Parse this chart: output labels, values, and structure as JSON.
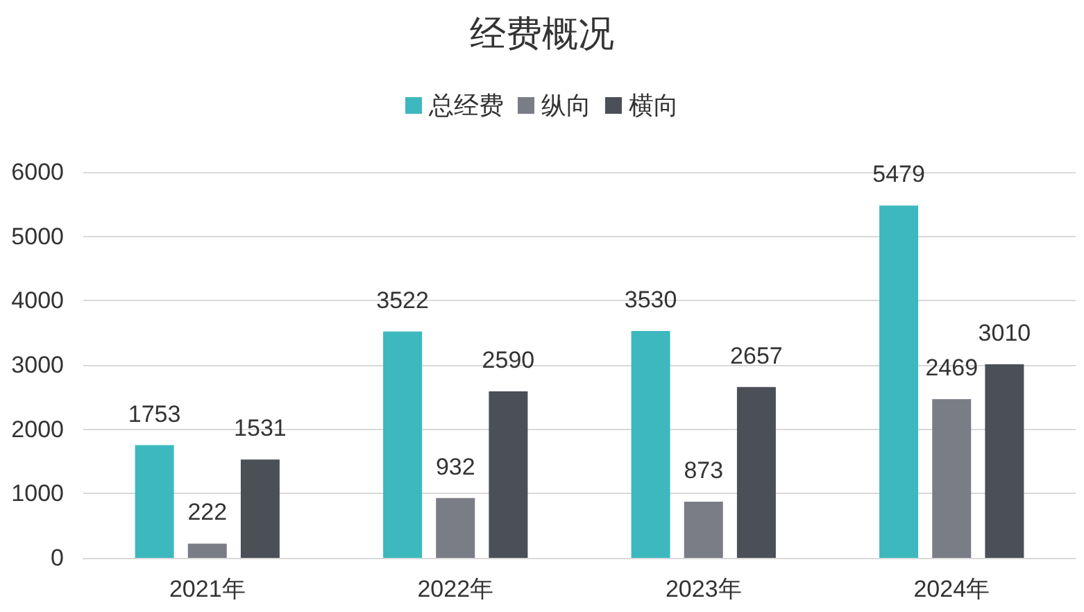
{
  "chart_data": {
    "type": "bar",
    "title": "经费概况",
    "categories": [
      "2021年",
      "2022年",
      "2023年",
      "2024年"
    ],
    "series": [
      {
        "name": "总经费",
        "color": "#3db8bf",
        "values": [
          1753,
          3522,
          3530,
          5479
        ]
      },
      {
        "name": "纵向",
        "color": "#7a7c86",
        "values": [
          222,
          932,
          873,
          2469
        ]
      },
      {
        "name": "横向",
        "color": "#4b4f58",
        "values": [
          1531,
          2590,
          2657,
          3010
        ]
      }
    ],
    "ylim": [
      0,
      6000
    ],
    "yticks": [
      0,
      1000,
      2000,
      3000,
      4000,
      5000,
      6000
    ],
    "grid": "y",
    "legend": "top",
    "data_labels": true
  }
}
